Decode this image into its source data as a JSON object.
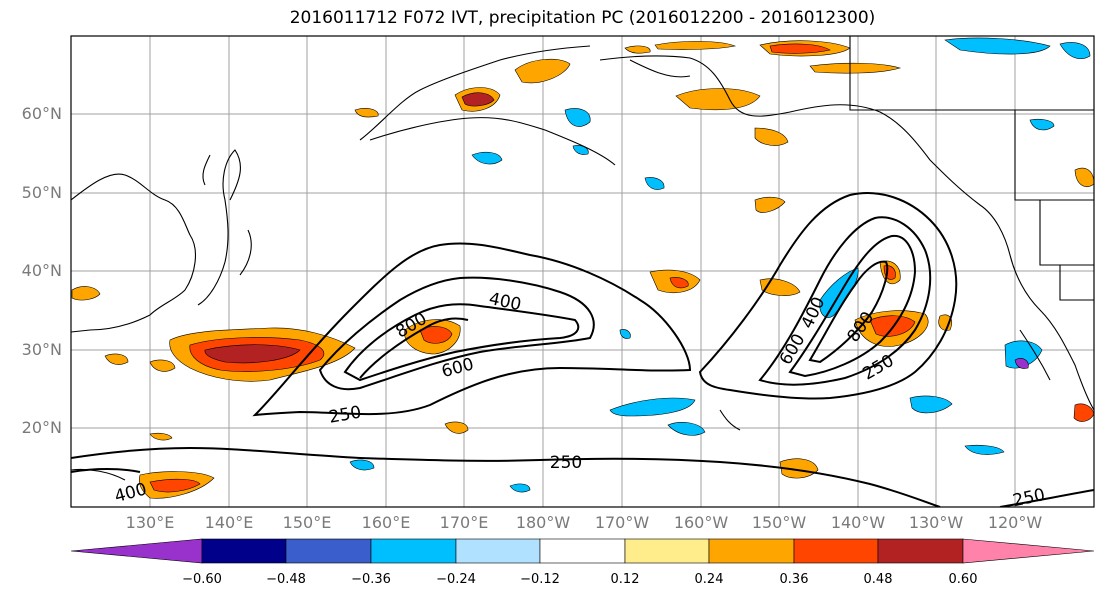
{
  "title": "2016011712 F072 IVT, precipitation PC (2016012200 - 2016012300)",
  "lat_labels": [
    "60°N",
    "50°N",
    "40°N",
    "30°N",
    "20°N"
  ],
  "lon_labels": [
    "130°E",
    "140°E",
    "150°E",
    "160°E",
    "170°E",
    "180°W",
    "170°W",
    "160°W",
    "150°W",
    "140°W",
    "130°W",
    "120°W"
  ],
  "contour_labels": [
    "400",
    "800",
    "600",
    "250",
    "400",
    "800",
    "600",
    "250",
    "250",
    "400",
    "250"
  ],
  "colorbar": {
    "ticks": [
      "−0.60",
      "−0.48",
      "−0.36",
      "−0.24",
      "−0.12",
      "0.12",
      "0.24",
      "0.36",
      "0.48",
      "0.60"
    ],
    "colors": [
      "#9932cc",
      "#00008b",
      "#3a5fcd",
      "#00bfff",
      "#b0e2ff",
      "#ffffff",
      "#ffec8b",
      "#ffa500",
      "#ff4500",
      "#b22222",
      "#ff82ab"
    ]
  }
}
